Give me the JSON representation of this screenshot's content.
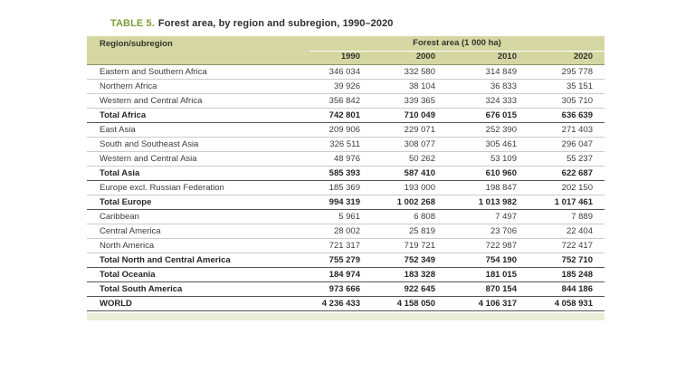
{
  "title": {
    "label": "TABLE 5.",
    "text": "Forest area, by region and subregion, 1990–2020"
  },
  "table": {
    "region_header": "Region/subregion",
    "group_header": "Forest area (1 000 ha)",
    "years": [
      "1990",
      "2000",
      "2010",
      "2020"
    ],
    "rows": [
      {
        "region": "Eastern and Southern Africa",
        "values": [
          "346 034",
          "332 580",
          "314 849",
          "295 778"
        ],
        "bold": false
      },
      {
        "region": "Northern Africa",
        "values": [
          "39 926",
          "38 104",
          "36 833",
          "35 151"
        ],
        "bold": false
      },
      {
        "region": "Western and Central Africa",
        "values": [
          "356 842",
          "339 365",
          "324 333",
          "305 710"
        ],
        "bold": false
      },
      {
        "region": "Total Africa",
        "values": [
          "742 801",
          "710 049",
          "676 015",
          "636 639"
        ],
        "bold": true
      },
      {
        "region": "East Asia",
        "values": [
          "209 906",
          "229 071",
          "252 390",
          "271 403"
        ],
        "bold": false
      },
      {
        "region": "South and Southeast Asia",
        "values": [
          "326 511",
          "308 077",
          "305 461",
          "296 047"
        ],
        "bold": false
      },
      {
        "region": "Western and Central Asia",
        "values": [
          "48 976",
          "50 262",
          "53 109",
          "55 237"
        ],
        "bold": false
      },
      {
        "region": "Total Asia",
        "values": [
          "585 393",
          "587 410",
          "610 960",
          "622 687"
        ],
        "bold": true
      },
      {
        "region": "Europe excl. Russian Federation",
        "values": [
          "185 369",
          "193 000",
          "198 847",
          "202 150"
        ],
        "bold": false
      },
      {
        "region": "Total Europe",
        "values": [
          "994 319",
          "1 002 268",
          "1 013 982",
          "1 017 461"
        ],
        "bold": true
      },
      {
        "region": "Caribbean",
        "values": [
          "5 961",
          "6 808",
          "7 497",
          "7 889"
        ],
        "bold": false
      },
      {
        "region": "Central America",
        "values": [
          "28 002",
          "25 819",
          "23 706",
          "22 404"
        ],
        "bold": false
      },
      {
        "region": "North America",
        "values": [
          "721 317",
          "719 721",
          "722 987",
          "722 417"
        ],
        "bold": false
      },
      {
        "region": "Total North and Central America",
        "values": [
          "755 279",
          "752 349",
          "754 190",
          "752 710"
        ],
        "bold": true
      },
      {
        "region": "Total Oceania",
        "values": [
          "184 974",
          "183 328",
          "181 015",
          "185 248"
        ],
        "bold": true
      },
      {
        "region": "Total South America",
        "values": [
          "973 666",
          "922 645",
          "870 154",
          "844 186"
        ],
        "bold": true
      },
      {
        "region": "WORLD",
        "values": [
          "4 236 433",
          "4 158 050",
          "4 106 317",
          "4 058 931"
        ],
        "bold": true
      }
    ]
  },
  "colors": {
    "header_bg": "#d4d7a2",
    "footer_band_bg": "#ebecd7",
    "title_accent_green": "#7d9c3b",
    "body_text": "#3d3d3d",
    "total_text": "#262626",
    "row_divider": "#cbcbcb",
    "total_border": "#55554d",
    "header_bottom_border": "#8e9268",
    "group_underline": "#ffffff",
    "page_bg": "#ffffff"
  }
}
